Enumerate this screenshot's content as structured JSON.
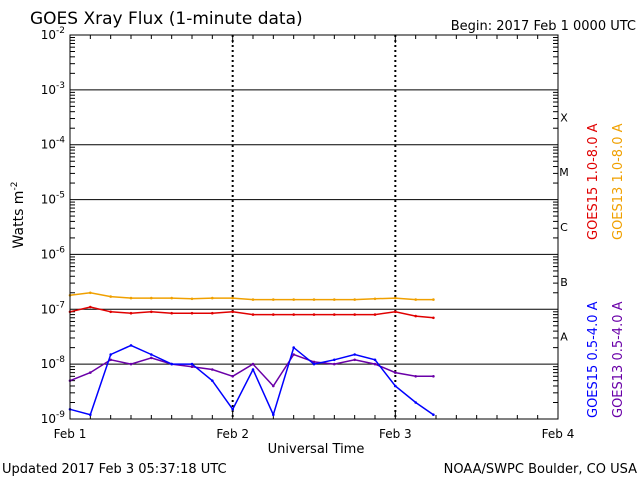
{
  "header": {
    "title": "GOES Xray Flux (1-minute data)",
    "begin": "Begin:  2017 Feb 1 0000 UTC"
  },
  "footer": {
    "updated": "Updated 2017 Feb  3 05:37:18 UTC",
    "credit": "NOAA/SWPC Boulder, CO USA"
  },
  "colors": {
    "goes15_long": "#e00000",
    "goes13_long": "#f0a000",
    "goes15_short": "#0000ff",
    "goes13_short": "#6a00a8",
    "gridline": "#000000",
    "background": "#ffffff"
  },
  "chart_data": {
    "type": "line",
    "title": "GOES Xray Flux (1-minute data)",
    "xlabel": "Universal Time",
    "ylabel": "Watts m-2",
    "y_scale": "log",
    "ylim": [
      1e-09,
      0.01
    ],
    "xlim": [
      "2017-02-01 00:00",
      "2017-02-04 00:00"
    ],
    "x_ticks": [
      "Feb 1",
      "Feb 2",
      "Feb 3",
      "Feb 4"
    ],
    "y_ticks": [
      {
        "base": "10",
        "exp": "-9",
        "value": 1e-09
      },
      {
        "base": "10",
        "exp": "-8",
        "value": 1e-08
      },
      {
        "base": "10",
        "exp": "-7",
        "value": 1e-07
      },
      {
        "base": "10",
        "exp": "-6",
        "value": 1e-06
      },
      {
        "base": "10",
        "exp": "-5",
        "value": 1e-05
      },
      {
        "base": "10",
        "exp": "-4",
        "value": 0.0001
      },
      {
        "base": "10",
        "exp": "-3",
        "value": 0.001
      },
      {
        "base": "10",
        "exp": "-2",
        "value": 0.01
      }
    ],
    "flare_classes": [
      {
        "label": "A",
        "value": 1e-08
      },
      {
        "label": "B",
        "value": 1e-07
      },
      {
        "label": "C",
        "value": 1e-06
      },
      {
        "label": "M",
        "value": 1e-05
      },
      {
        "label": "X",
        "value": 0.0001
      }
    ],
    "legend": [
      {
        "label": "GOES15 1.0-8.0 A",
        "color": "#e00000"
      },
      {
        "label": "GOES13 1.0-8.0 A",
        "color": "#f0a000"
      },
      {
        "label": "GOES15 0.5-4.0 A",
        "color": "#0000ff"
      },
      {
        "label": "GOES13 0.5-4.0 A",
        "color": "#6a00a8"
      }
    ],
    "series": [
      {
        "name": "GOES13 1.0-8.0 A",
        "color": "#f0a000",
        "x": [
          "2017-02-01 00:00",
          "2017-02-01 03:00",
          "2017-02-01 06:00",
          "2017-02-01 09:00",
          "2017-02-01 12:00",
          "2017-02-01 15:00",
          "2017-02-01 18:00",
          "2017-02-01 21:00",
          "2017-02-02 00:00",
          "2017-02-02 03:00",
          "2017-02-02 06:00",
          "2017-02-02 09:00",
          "2017-02-02 12:00",
          "2017-02-02 15:00",
          "2017-02-02 18:00",
          "2017-02-02 21:00",
          "2017-02-03 00:00",
          "2017-02-03 03:00",
          "2017-02-03 05:37"
        ],
        "y": [
          1.8e-07,
          2e-07,
          1.7e-07,
          1.6e-07,
          1.6e-07,
          1.6e-07,
          1.55e-07,
          1.6e-07,
          1.6e-07,
          1.5e-07,
          1.5e-07,
          1.5e-07,
          1.5e-07,
          1.5e-07,
          1.5e-07,
          1.55e-07,
          1.6e-07,
          1.5e-07,
          1.5e-07
        ]
      },
      {
        "name": "GOES15 1.0-8.0 A",
        "color": "#e00000",
        "x": [
          "2017-02-01 00:00",
          "2017-02-01 03:00",
          "2017-02-01 06:00",
          "2017-02-01 09:00",
          "2017-02-01 12:00",
          "2017-02-01 15:00",
          "2017-02-01 18:00",
          "2017-02-01 21:00",
          "2017-02-02 00:00",
          "2017-02-02 03:00",
          "2017-02-02 06:00",
          "2017-02-02 09:00",
          "2017-02-02 12:00",
          "2017-02-02 15:00",
          "2017-02-02 18:00",
          "2017-02-02 21:00",
          "2017-02-03 00:00",
          "2017-02-03 03:00",
          "2017-02-03 05:37"
        ],
        "y": [
          9e-08,
          1.1e-07,
          9e-08,
          8.5e-08,
          9e-08,
          8.5e-08,
          8.5e-08,
          8.5e-08,
          9e-08,
          8e-08,
          8e-08,
          8e-08,
          8e-08,
          8e-08,
          8e-08,
          8e-08,
          9e-08,
          7.5e-08,
          7e-08
        ]
      },
      {
        "name": "GOES13 0.5-4.0 A",
        "color": "#6a00a8",
        "x": [
          "2017-02-01 00:00",
          "2017-02-01 03:00",
          "2017-02-01 06:00",
          "2017-02-01 09:00",
          "2017-02-01 12:00",
          "2017-02-01 15:00",
          "2017-02-01 18:00",
          "2017-02-01 21:00",
          "2017-02-02 00:00",
          "2017-02-02 03:00",
          "2017-02-02 06:00",
          "2017-02-02 09:00",
          "2017-02-02 12:00",
          "2017-02-02 15:00",
          "2017-02-02 18:00",
          "2017-02-02 21:00",
          "2017-02-03 00:00",
          "2017-02-03 03:00",
          "2017-02-03 05:37"
        ],
        "y": [
          5e-09,
          7e-09,
          1.2e-08,
          1e-08,
          1.3e-08,
          1e-08,
          9e-09,
          8e-09,
          6e-09,
          1e-08,
          4e-09,
          1.5e-08,
          1.1e-08,
          1e-08,
          1.2e-08,
          1e-08,
          7e-09,
          6e-09,
          6e-09
        ]
      },
      {
        "name": "GOES15 0.5-4.0 A",
        "color": "#0000ff",
        "x": [
          "2017-02-01 00:00",
          "2017-02-01 03:00",
          "2017-02-01 06:00",
          "2017-02-01 09:00",
          "2017-02-01 12:00",
          "2017-02-01 15:00",
          "2017-02-01 18:00",
          "2017-02-01 21:00",
          "2017-02-02 00:00",
          "2017-02-02 03:00",
          "2017-02-02 06:00",
          "2017-02-02 09:00",
          "2017-02-02 12:00",
          "2017-02-02 15:00",
          "2017-02-02 18:00",
          "2017-02-02 21:00",
          "2017-02-03 00:00",
          "2017-02-03 03:00",
          "2017-02-03 05:37"
        ],
        "y": [
          1.5e-09,
          1.2e-09,
          1.5e-08,
          2.2e-08,
          1.5e-08,
          1e-08,
          1e-08,
          5e-09,
          1.5e-09,
          8e-09,
          1.2e-09,
          2e-08,
          1e-08,
          1.2e-08,
          1.5e-08,
          1.2e-08,
          4e-09,
          2e-09,
          1.2e-09
        ]
      }
    ]
  }
}
